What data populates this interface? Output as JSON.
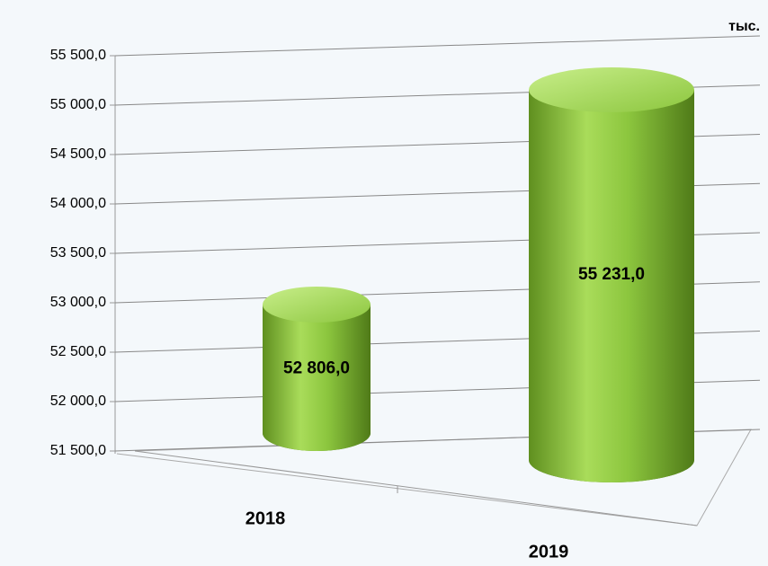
{
  "chart_data": {
    "type": "bar3d",
    "unit_label": "тыс.",
    "categories": [
      "2018",
      "2019"
    ],
    "values": [
      52806,
      55231
    ],
    "value_labels": [
      "52 806,0",
      "55 231,0"
    ],
    "color": "#8cc63e",
    "ylim": [
      51500,
      55500
    ],
    "yticks": [
      {
        "value": 51500,
        "label": "51 500,0"
      },
      {
        "value": 52000,
        "label": "52 000,0"
      },
      {
        "value": 52500,
        "label": "52 500,0"
      },
      {
        "value": 53000,
        "label": "53 000,0"
      },
      {
        "value": 53500,
        "label": "53 500,0"
      },
      {
        "value": 54000,
        "label": "54 000,0"
      },
      {
        "value": 54500,
        "label": "54 500,0"
      },
      {
        "value": 55000,
        "label": "55 000,0"
      },
      {
        "value": 55500,
        "label": "55 500,0"
      }
    ],
    "grid": true
  }
}
